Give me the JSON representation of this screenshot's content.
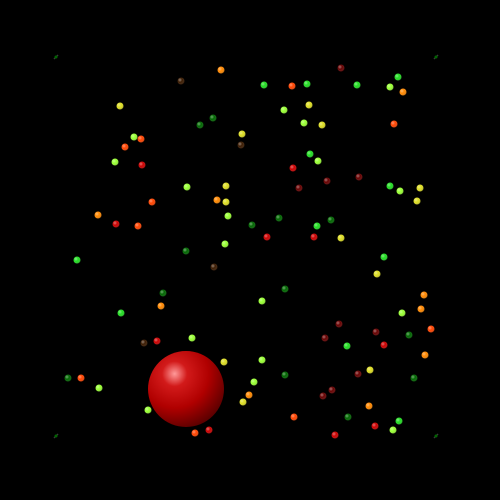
{
  "game": {
    "background_color": "#000000",
    "player_orb": {
      "color": "#b00000",
      "highlight": "#ff9a9a",
      "shadow": "#5a0000"
    },
    "corner_markers": {
      "color": "#3a3a3a"
    },
    "palette": {
      "green": "#22dd22",
      "lime": "#99ff33",
      "yellow": "#dddd22",
      "orange": "#ff8800",
      "red_orange": "#ff4400",
      "red": "#cc0000",
      "dark_red": "#660000",
      "dark_green": "#006600",
      "brown": "#3a1a00"
    }
  }
}
